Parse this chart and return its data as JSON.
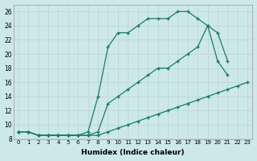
{
  "xlabel": "Humidex (Indice chaleur)",
  "background_color": "#cce8e8",
  "grid_color": "#c0d8d8",
  "line_color": "#1a7a6e",
  "xlim": [
    -0.5,
    23.5
  ],
  "ylim": [
    8,
    27
  ],
  "xticks": [
    0,
    1,
    2,
    3,
    4,
    5,
    6,
    7,
    8,
    9,
    10,
    11,
    12,
    13,
    14,
    15,
    16,
    17,
    18,
    19,
    20,
    21,
    22,
    23
  ],
  "yticks": [
    8,
    10,
    12,
    14,
    16,
    18,
    20,
    22,
    24,
    26
  ],
  "line_upper_x": [
    0,
    1,
    2,
    3,
    4,
    5,
    6,
    7,
    8,
    9,
    10,
    11,
    12,
    13,
    14,
    15,
    16,
    17,
    18,
    19,
    20,
    21
  ],
  "line_upper_y": [
    9,
    9,
    8.5,
    8.5,
    8.5,
    8.5,
    8.5,
    9,
    14,
    21,
    23,
    23,
    24,
    25,
    25,
    25,
    26,
    26,
    25,
    24,
    19,
    17
  ],
  "line_mid_x": [
    0,
    1,
    2,
    3,
    4,
    5,
    6,
    7,
    8,
    9,
    10,
    11,
    12,
    13,
    14,
    15,
    16,
    17,
    18,
    19,
    20,
    21,
    22,
    23
  ],
  "line_mid_y": [
    9,
    9,
    8.5,
    8.5,
    8.5,
    8.5,
    8.5,
    8.5,
    9,
    13,
    14,
    15,
    16,
    17,
    18,
    18,
    19,
    20,
    21,
    24,
    23,
    19,
    null,
    null
  ],
  "line_bottom_x": [
    0,
    1,
    2,
    3,
    4,
    5,
    6,
    7,
    8,
    9,
    10,
    11,
    12,
    13,
    14,
    15,
    16,
    17,
    18,
    19,
    20,
    21,
    22,
    23
  ],
  "line_bottom_y": [
    9,
    9,
    8.5,
    8.5,
    8.5,
    8.5,
    8.5,
    8.5,
    8.5,
    9,
    9.5,
    10,
    10.5,
    11,
    11.5,
    12,
    12.5,
    13,
    13.5,
    14,
    14.5,
    15,
    15.5,
    16
  ]
}
